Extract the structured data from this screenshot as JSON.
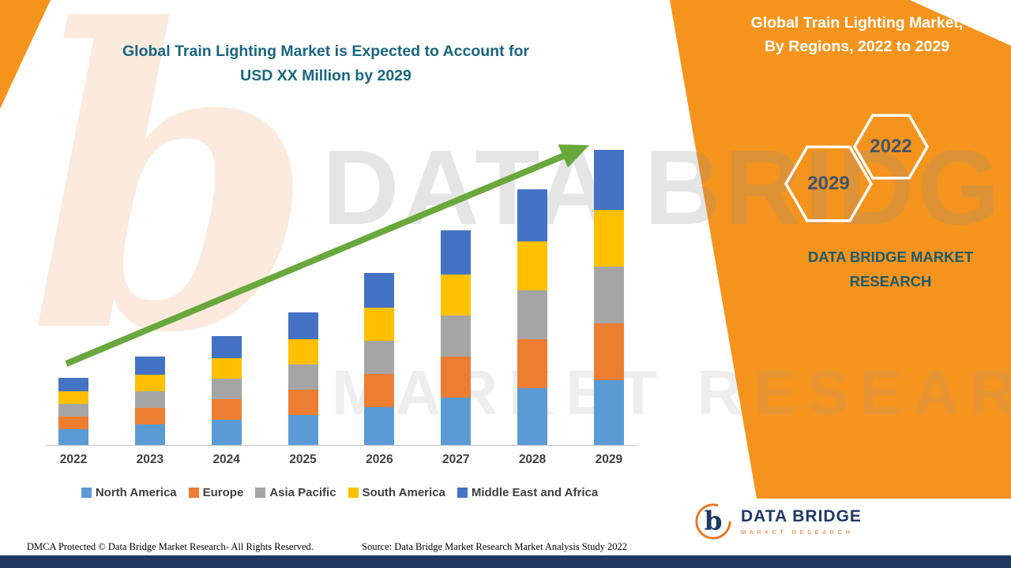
{
  "page": {
    "title_line1": "Global Train Lighting Market is Expected to Account for",
    "title_line2": "USD XX Million by 2029"
  },
  "right_panel": {
    "title_line1": "Global Train Lighting Market,",
    "title_line2": "By Regions, 2022 to 2029",
    "hexagon_back_label": "2029",
    "hexagon_front_label": "2022",
    "brand_line1": "DATA BRIDGE MARKET",
    "brand_line2": "RESEARCH"
  },
  "watermark": {
    "logo_letter": "b",
    "line1": "DATA BRIDGE",
    "line2": "MARKET RESEARCH"
  },
  "footer": {
    "dmca": "DMCA Protected © Data Bridge Market Research- All Rights Reserved.",
    "source": "Source: Data Bridge Market Research Market Analysis Study 2022"
  },
  "logo": {
    "letter": "b",
    "name": "DATA BRIDGE",
    "subtitle": "MARKET RESEARCH"
  },
  "colors": {
    "accent_orange": "#F5941D",
    "navy": "#1F3864",
    "title_teal": "#1A6680",
    "arrow_green": "#69A83C"
  },
  "chart_data": {
    "type": "bar",
    "stacked": true,
    "title": "Global Train Lighting Market is Expected to Account for USD XX Million by 2029",
    "categories": [
      "2022",
      "2023",
      "2024",
      "2025",
      "2026",
      "2027",
      "2028",
      "2029"
    ],
    "series": [
      {
        "name": "North America",
        "color": "#5B9BD5",
        "values": [
          20,
          26,
          32,
          38,
          48,
          60,
          72,
          82
        ]
      },
      {
        "name": "Europe",
        "color": "#ED7D31",
        "values": [
          16,
          21,
          26,
          32,
          42,
          52,
          62,
          72
        ]
      },
      {
        "name": "Asia Pacific",
        "color": "#A5A5A5",
        "values": [
          16,
          21,
          26,
          32,
          42,
          52,
          62,
          72
        ]
      },
      {
        "name": "South America",
        "color": "#FFC000",
        "values": [
          16,
          21,
          26,
          32,
          42,
          52,
          62,
          72
        ]
      },
      {
        "name": "Middle East and Africa",
        "color": "#4472C4",
        "values": [
          17,
          23,
          28,
          34,
          44,
          56,
          66,
          76
        ]
      }
    ],
    "xlabel": "",
    "ylabel": "",
    "ylim": [
      0,
      400
    ],
    "yaxis_visible": false,
    "grid": false,
    "legend_position": "bottom",
    "note": "Y-axis is unlabeled in the source image; series values are relative estimates read from bar heights",
    "annotations": [
      "upward growth trend arrow from 2022 toward 2029"
    ]
  }
}
